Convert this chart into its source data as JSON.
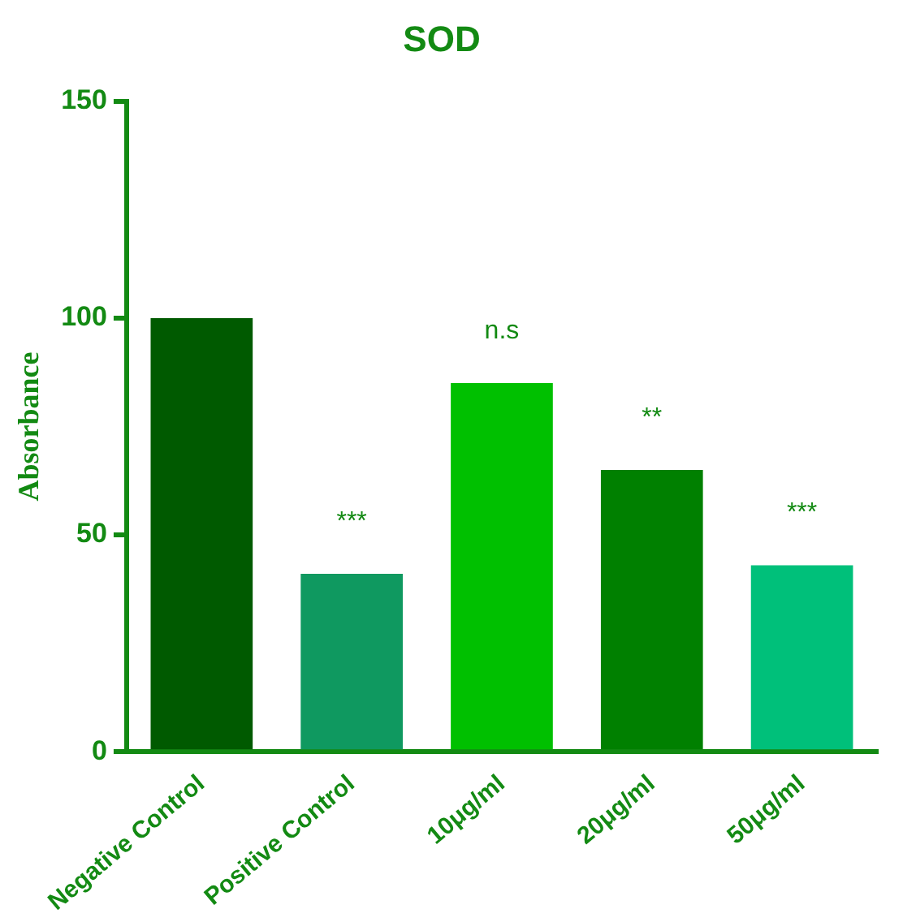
{
  "chart_data": {
    "type": "bar",
    "title": "SOD",
    "ylabel": "Absorbance",
    "categories": [
      "Negative Control",
      "Positive Control",
      "10μg/ml",
      "20μg/ml",
      "50μg/ml"
    ],
    "values": [
      100,
      41,
      85,
      65,
      43
    ],
    "colors": [
      "#005a00",
      "#0f9960",
      "#00c000",
      "#008000",
      "#00c07a"
    ],
    "value_labels": [
      null,
      "***",
      "n.s",
      "**",
      "***"
    ],
    "ylim": [
      0,
      150
    ],
    "yticks": [
      0,
      50,
      100,
      150
    ],
    "grid": false,
    "legend": false
  }
}
